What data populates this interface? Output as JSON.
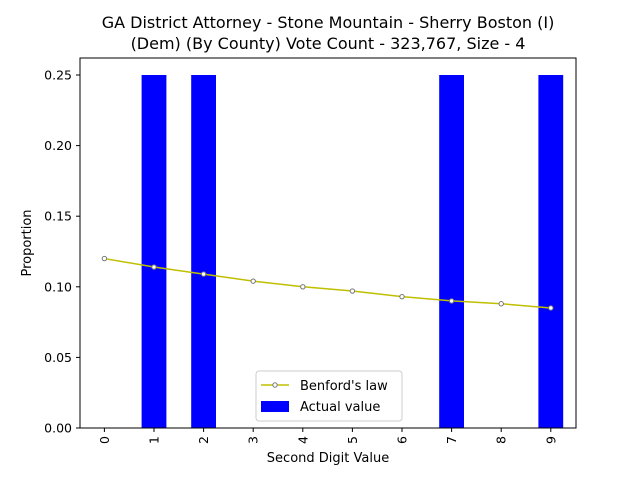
{
  "chart_data": {
    "type": "bar",
    "title_line1": "GA District Attorney - Stone Mountain - Sherry Boston (I)",
    "title_line2": "(Dem) (By County) Vote Count - 323,767, Size - 4",
    "xlabel": "Second Digit Value",
    "ylabel": "Proportion",
    "categories": [
      "0",
      "1",
      "2",
      "3",
      "4",
      "5",
      "6",
      "7",
      "8",
      "9"
    ],
    "ylim": [
      0,
      0.25
    ],
    "yticks": [
      "0.00",
      "0.05",
      "0.10",
      "0.15",
      "0.20",
      "0.25"
    ],
    "series": [
      {
        "name": "Actual value",
        "kind": "bar",
        "color": "#0000ff",
        "values": [
          0,
          0.25,
          0.25,
          0,
          0,
          0,
          0,
          0.25,
          0,
          0.25
        ]
      },
      {
        "name": "Benford's law",
        "kind": "line",
        "color": "#bfbf00",
        "values": [
          0.12,
          0.114,
          0.109,
          0.104,
          0.1,
          0.097,
          0.093,
          0.09,
          0.088,
          0.085
        ]
      }
    ],
    "legend_position": "lower-center",
    "grid": false
  }
}
